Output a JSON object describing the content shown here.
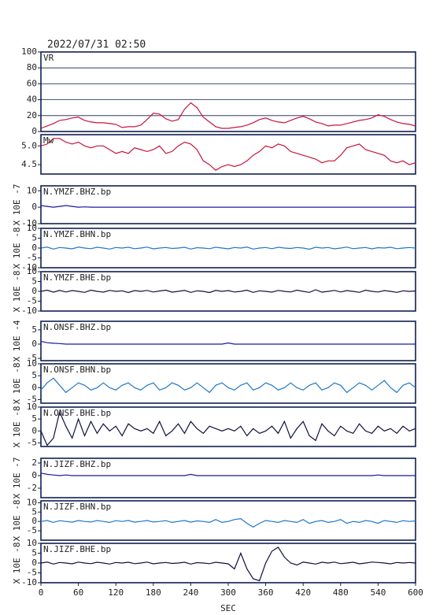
{
  "chart_data": {
    "type": "stacked-line",
    "title": "2022/07/31 02:50",
    "xlabel": "SEC",
    "xlim": [
      0,
      600
    ],
    "xticks": [
      0,
      60,
      120,
      180,
      240,
      300,
      360,
      420,
      480,
      540,
      600
    ],
    "x": [
      0,
      10,
      20,
      30,
      40,
      50,
      60,
      70,
      80,
      90,
      100,
      110,
      120,
      130,
      140,
      150,
      160,
      170,
      180,
      190,
      200,
      210,
      220,
      230,
      240,
      250,
      260,
      270,
      280,
      290,
      300,
      310,
      320,
      330,
      340,
      350,
      360,
      370,
      380,
      390,
      400,
      410,
      420,
      430,
      440,
      450,
      460,
      470,
      480,
      490,
      500,
      510,
      520,
      530,
      540,
      550,
      560,
      570,
      580,
      590,
      600
    ],
    "panels": [
      {
        "name": "VR",
        "color": "#c8143c",
        "ylim": [
          0,
          100
        ],
        "yticks": [
          0,
          20,
          40,
          60,
          80,
          100
        ],
        "grid": true,
        "values": [
          4,
          7,
          10,
          14,
          15,
          17,
          18,
          14,
          12,
          11,
          11,
          10,
          9,
          5,
          6,
          6,
          8,
          15,
          23,
          22,
          16,
          13,
          15,
          28,
          36,
          30,
          18,
          12,
          6,
          4,
          4,
          5,
          6,
          8,
          11,
          15,
          17,
          14,
          12,
          11,
          14,
          17,
          19,
          16,
          12,
          10,
          7,
          8,
          8,
          10,
          12,
          14,
          15,
          17,
          21,
          19,
          15,
          12,
          10,
          9,
          7
        ]
      },
      {
        "name": "Mw",
        "color": "#c8143c",
        "ylim": [
          4.25,
          5.3
        ],
        "yticks": [
          4.5,
          {
            "value": 5,
            "label": "5.0"
          }
        ],
        "grid": false,
        "values": [
          5.0,
          5.05,
          5.2,
          5.2,
          5.1,
          5.05,
          5.1,
          5.0,
          4.95,
          5.0,
          5.0,
          4.9,
          4.8,
          4.85,
          4.8,
          4.95,
          4.9,
          4.85,
          4.9,
          5.0,
          4.8,
          4.85,
          5.0,
          5.1,
          5.05,
          4.9,
          4.6,
          4.5,
          4.35,
          4.45,
          4.5,
          4.45,
          4.5,
          4.6,
          4.75,
          4.85,
          5.0,
          4.95,
          5.05,
          5.0,
          4.85,
          4.8,
          4.75,
          4.7,
          4.65,
          4.55,
          4.6,
          4.6,
          4.75,
          4.95,
          5.0,
          5.05,
          4.9,
          4.85,
          4.8,
          4.75,
          4.6,
          4.55,
          4.6,
          4.5,
          4.55
        ]
      },
      {
        "name": "N.YMZF.BHZ.bp",
        "ylabel": "X 10E -7",
        "color": "#1a1aa0",
        "ylim": [
          -10,
          13
        ],
        "yticks": [
          -10,
          0,
          10
        ],
        "grid": false,
        "values": [
          1,
          0.5,
          0,
          0.5,
          1,
          0.5,
          0,
          0.2,
          0,
          0,
          0,
          0,
          0,
          0,
          0,
          0,
          0,
          0,
          0,
          0,
          0,
          0,
          0,
          0,
          0,
          0,
          0,
          0,
          0,
          0,
          0,
          0,
          0,
          0,
          0,
          0,
          0,
          0,
          0,
          0,
          0,
          0,
          0,
          0,
          0,
          0,
          0,
          0,
          0,
          0,
          0,
          0,
          0,
          0,
          0,
          0,
          0,
          0,
          0,
          0,
          0
        ]
      },
      {
        "name": "N.YMZF.BHN.bp",
        "ylabel": "X 10E -8",
        "color": "#1e78c8",
        "ylim": [
          -10,
          10
        ],
        "yticks": [
          -10,
          -5,
          0,
          5,
          10
        ],
        "grid": false,
        "values": [
          0,
          0.5,
          -0.5,
          0.3,
          0,
          -0.4,
          0.5,
          0,
          -0.3,
          0.4,
          0,
          -0.5,
          0.3,
          0,
          0.4,
          -0.3,
          0,
          0.5,
          -0.4,
          0,
          0.3,
          -0.2,
          0,
          0.4,
          -0.5,
          0.2,
          0,
          -0.3,
          0.4,
          0,
          -0.4,
          0.3,
          0,
          0.5,
          -0.5,
          0,
          0.3,
          -0.3,
          0.4,
          0,
          -0.2,
          0.3,
          0,
          -0.6,
          0.4,
          0,
          0.3,
          -0.4,
          0,
          0.5,
          -0.3,
          0,
          0.3,
          -0.4,
          0.2,
          0,
          0.4,
          -0.3,
          0,
          0.3,
          0
        ]
      },
      {
        "name": "N.YMZF.BHE.bp",
        "ylabel": "X 10E -8",
        "color": "#101040",
        "ylim": [
          -10,
          10
        ],
        "yticks": [
          -10,
          -5,
          0,
          5,
          10
        ],
        "grid": false,
        "values": [
          0,
          0.6,
          -0.4,
          0.5,
          -0.3,
          0.4,
          0,
          -0.5,
          0.6,
          0,
          -0.4,
          0.5,
          0,
          0.3,
          -0.6,
          0.4,
          0,
          0.5,
          -0.3,
          0.2,
          0.6,
          -0.4,
          0,
          0.5,
          -0.5,
          0.3,
          0,
          -0.6,
          0.5,
          0,
          0.4,
          -0.3,
          0,
          0.6,
          -0.5,
          0.3,
          0,
          -0.4,
          0.5,
          0,
          -0.3,
          0.6,
          0,
          -0.5,
          0.8,
          -0.4,
          0,
          0.5,
          -0.3,
          0.4,
          0,
          -0.5,
          0.6,
          0,
          -0.3,
          0.4,
          0,
          -0.5,
          0.3,
          0,
          0.2
        ]
      },
      {
        "name": "N.ONSF.BHZ.bp",
        "ylabel": "X 10E -4",
        "color": "#1a1aa0",
        "ylim": [
          -5.8,
          8
        ],
        "yticks": [
          -5,
          0,
          5
        ],
        "grid": false,
        "values": [
          1,
          0.5,
          0.3,
          0.2,
          0,
          0,
          0,
          0,
          0,
          0,
          0,
          0,
          0,
          0,
          0,
          0,
          0,
          0,
          0,
          0,
          0,
          0,
          0,
          0,
          0,
          0,
          0,
          0,
          0,
          0,
          0.4,
          0,
          0,
          0,
          0,
          0,
          0,
          0,
          0,
          0,
          0,
          0,
          0,
          0,
          0,
          0,
          0,
          0,
          0,
          0,
          0,
          0,
          0,
          0,
          0,
          0,
          0,
          0,
          0,
          0,
          0
        ]
      },
      {
        "name": "N.ONSF.BHN.bp",
        "ylabel": "X 10E -8",
        "color": "#1e78c8",
        "ylim": [
          -6.5,
          10
        ],
        "yticks": [
          -5,
          0,
          5,
          10
        ],
        "grid": false,
        "values": [
          -1,
          2,
          4,
          1,
          -2,
          0,
          2,
          1,
          -1,
          0,
          2,
          0,
          -1,
          1,
          2,
          0,
          -1,
          1,
          2,
          -1,
          0,
          2,
          1,
          -1,
          0,
          2,
          0,
          -2,
          1,
          2,
          0,
          -1,
          1,
          2,
          -1,
          0,
          2,
          1,
          -1,
          0,
          2,
          0,
          -1,
          1,
          2,
          -1,
          0,
          2,
          1,
          -2,
          0,
          2,
          1,
          -1,
          1,
          3,
          0,
          -2,
          1,
          2,
          0
        ]
      },
      {
        "name": "N.ONSF.BHE.bp",
        "ylabel": "X 10E -8",
        "color": "#101040",
        "ylim": [
          -6.5,
          10
        ],
        "yticks": [
          -5,
          0,
          5,
          10
        ],
        "grid": false,
        "values": [
          0,
          -6,
          -3,
          8,
          2,
          -3,
          5,
          -2,
          4,
          -1,
          3,
          0,
          2,
          -2,
          3,
          1,
          0,
          1,
          -1,
          4,
          -2,
          0,
          3,
          -1,
          4,
          1,
          -1,
          2,
          1,
          0,
          1,
          0,
          2,
          -2,
          1,
          -1,
          0,
          2,
          -1,
          4,
          -3,
          1,
          4,
          -2,
          -4,
          3,
          0,
          -2,
          2,
          0,
          -1,
          3,
          0,
          -1,
          2,
          0,
          1,
          -1,
          2,
          0,
          1
        ]
      },
      {
        "name": "N.JIZF.BHZ.bp",
        "ylabel": "X 10E -7",
        "color": "#1a1aa0",
        "ylim": [
          -3.5,
          2.75
        ],
        "yticks": [
          -2,
          0,
          2
        ],
        "grid": false,
        "values": [
          0.4,
          0.2,
          0.1,
          0,
          0.1,
          0,
          0,
          0,
          0,
          0,
          0,
          0,
          0,
          0,
          0,
          0,
          0,
          0,
          0,
          0,
          0,
          0,
          0,
          0,
          0.2,
          0,
          0,
          0,
          0,
          0,
          0,
          0,
          0,
          0,
          0,
          0,
          0,
          0,
          0,
          0,
          0,
          0,
          0,
          0,
          0,
          0,
          0,
          0,
          0,
          0,
          0,
          0,
          0,
          0,
          0.1,
          0,
          0,
          0,
          0,
          0,
          0
        ]
      },
      {
        "name": "N.JIZF.BHN.bp",
        "ylabel": "X 10E -8",
        "color": "#1e78c8",
        "ylim": [
          -10,
          11
        ],
        "yticks": [
          -5,
          0,
          5,
          10
        ],
        "grid": false,
        "values": [
          0,
          0.5,
          -0.5,
          0.4,
          0,
          -0.4,
          0.5,
          0,
          -0.3,
          0.5,
          0,
          -0.5,
          0.4,
          0,
          0.5,
          -0.4,
          0,
          0.5,
          -0.3,
          0,
          0.4,
          -0.5,
          0,
          0.5,
          -0.4,
          0.3,
          0,
          -0.5,
          1,
          -0.5,
          0,
          1,
          1.5,
          -1,
          -3,
          -1,
          0.5,
          0,
          -0.5,
          0.5,
          0,
          -0.5,
          1,
          -1,
          0,
          0.5,
          -0.5,
          0,
          1,
          -1,
          0,
          -0.5,
          0.5,
          0,
          -1,
          0.5,
          0,
          -0.5,
          0.4,
          0,
          0.3
        ]
      },
      {
        "name": "N.JIZF.BHE.bp",
        "ylabel": "X 10E -8",
        "color": "#101040",
        "ylim": [
          -10,
          10
        ],
        "yticks": [
          -10,
          -5,
          0,
          5,
          10
        ],
        "grid": false,
        "values": [
          0,
          0.5,
          -0.5,
          0.3,
          0,
          -0.4,
          0.5,
          0,
          -0.3,
          0.4,
          0,
          -0.5,
          0.3,
          0,
          0.4,
          -0.3,
          0,
          0.5,
          -0.4,
          0,
          0.3,
          -0.2,
          0,
          0.4,
          -0.5,
          0.2,
          0,
          -0.3,
          0.4,
          0,
          -0.4,
          -3,
          5,
          -3,
          -8,
          -9,
          0,
          6,
          8,
          3,
          0,
          -1,
          0.5,
          0,
          -0.5,
          0.4,
          0,
          0.5,
          -0.3,
          0,
          0.4,
          -0.4,
          0,
          0.5,
          0.3,
          0,
          -0.4,
          0.3,
          0,
          0.3,
          0
        ]
      }
    ]
  }
}
